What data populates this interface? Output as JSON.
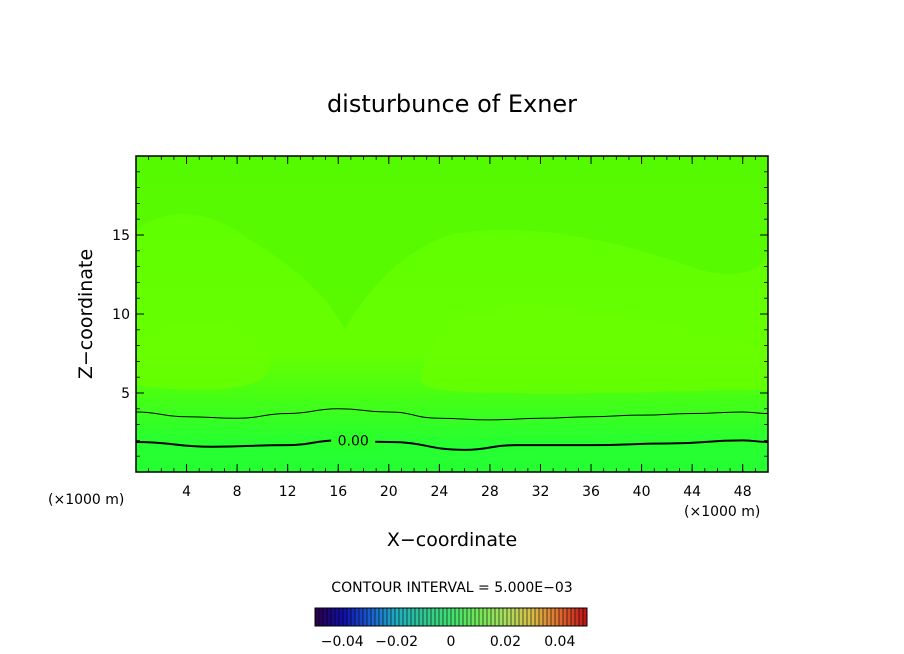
{
  "chart_data": {
    "type": "heatmap",
    "title": "disturbunce of Exner",
    "xlabel": "X−coordinate",
    "ylabel": "Z−coordinate",
    "x_unit": "(×1000 m)",
    "y_unit": "(×1000 m)",
    "xlim": [
      0,
      50
    ],
    "ylim": [
      0,
      20
    ],
    "x_ticks": [
      "4",
      "8",
      "12",
      "16",
      "20",
      "24",
      "28",
      "32",
      "36",
      "40",
      "44",
      "48"
    ],
    "y_ticks": [
      "5",
      "10",
      "15"
    ],
    "contour_interval_text": "CONTOUR INTERVAL = 5.000E−03",
    "contour_label": "0.00",
    "contour_levels": [
      {
        "level": 0.0,
        "x": [
          0,
          6,
          12,
          16,
          20,
          26,
          30,
          36,
          42,
          48,
          50
        ],
        "z": [
          1.9,
          1.6,
          1.7,
          2.0,
          1.9,
          1.4,
          1.7,
          1.7,
          1.8,
          2.0,
          1.9
        ]
      },
      {
        "level": 0.005,
        "x": [
          0,
          4,
          8,
          12,
          16,
          20,
          24,
          28,
          32,
          36,
          40,
          44,
          48,
          50
        ],
        "z": [
          3.8,
          3.5,
          3.4,
          3.7,
          4.0,
          3.8,
          3.4,
          3.3,
          3.4,
          3.5,
          3.6,
          3.7,
          3.8,
          3.7
        ]
      }
    ],
    "colorbar": {
      "ticks": [
        "−0.04",
        "−0.02",
        "0",
        "0.02",
        "0.04"
      ],
      "range": [
        -0.05,
        0.05
      ],
      "colors": [
        "#2a0050",
        "#1010a8",
        "#1a60d0",
        "#20b0c0",
        "#30c890",
        "#40e070",
        "#70e858",
        "#a8e060",
        "#d8c048",
        "#e07030",
        "#c01818"
      ]
    },
    "colors": {
      "field_high": "#66ff00",
      "field_mid": "#55ff00",
      "field_low": "#22ff33"
    }
  }
}
